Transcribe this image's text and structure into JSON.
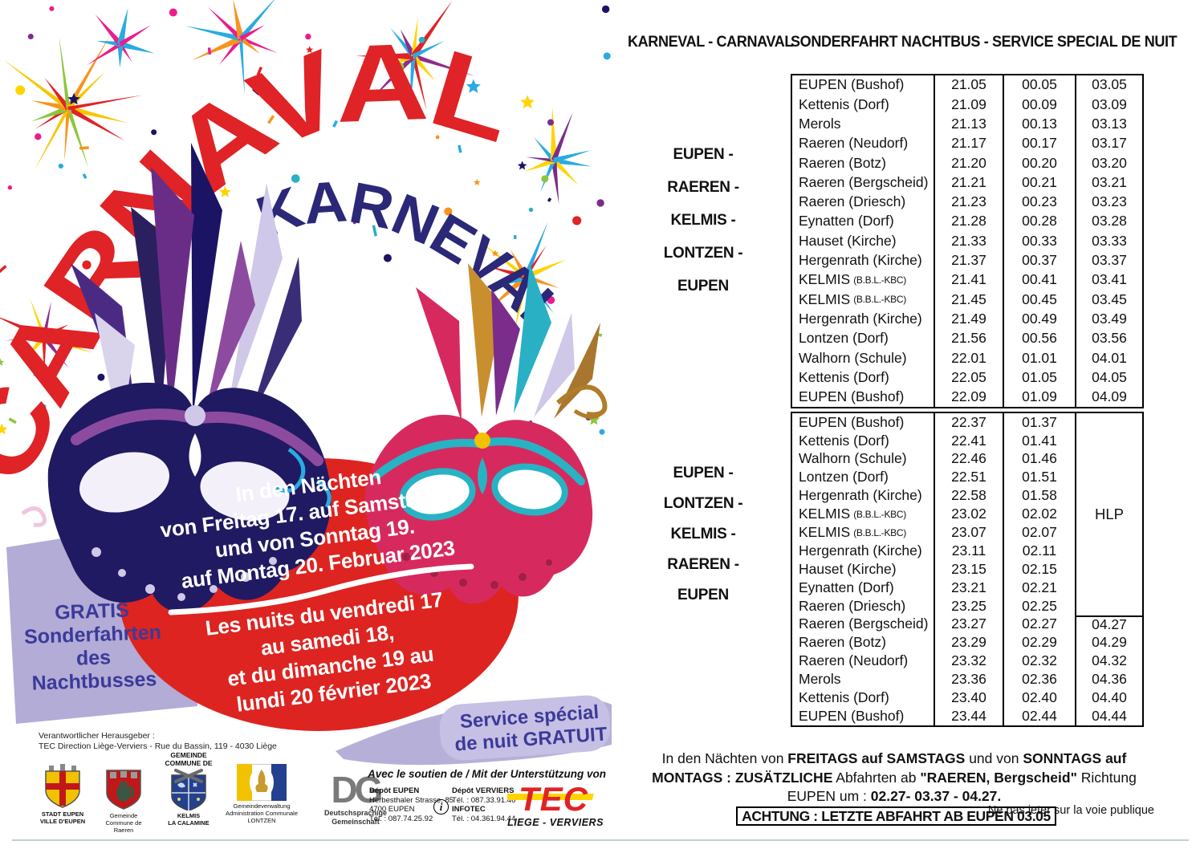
{
  "colors": {
    "title_red": "#df2326",
    "title_navy": "#2b2878",
    "circle_red": "#dd2421",
    "lavender_band": "#b2acd6",
    "label_blue": "#3c3a99",
    "tec_red": "#e02325",
    "tec_yellow": "#ffd400"
  },
  "poster": {
    "title_fr": "CARNAVAL",
    "title_de": "KARNEVAL",
    "circle": {
      "de_lines": [
        "In den Nächten",
        "von Freitag 17. auf Samstag 18,",
        "und von Sonntag 19.",
        "auf Montag 20. Februar 2023"
      ],
      "fr_lines": [
        "Les nuits du vendredi 17",
        "au samedi 18,",
        "et du dimanche 19 au",
        "lundi 20 février 2023"
      ]
    },
    "gratis_lines": [
      "GRATIS",
      "Sonderfahrten",
      "des",
      "Nachtbusses"
    ],
    "service_lines": [
      "Service spécial",
      "de nuit GRATUIT"
    ],
    "publisher_lines": [
      "Verantwortlicher Herausgeber :",
      "TEC Direction Liège-Verviers - Rue du Bassin, 119 - 4030 Liège"
    ],
    "support_title": "Avec le soutien de / Mit der Unterstützung von",
    "depot_eupen": [
      {
        "t": "Dépôt EUPEN",
        "b": true
      },
      {
        "t": "Herbesthaler Strasse, 85",
        "b": false
      },
      {
        "t": "4700 EUPEN",
        "b": false
      },
      {
        "t": "Tél. : 087.74.25.92",
        "b": false
      }
    ],
    "depot_verviers": [
      {
        "t": "Dépôt VERVIERS",
        "b": true
      },
      {
        "t": "Tél. : 087.33.91.46",
        "b": false
      },
      {
        "t": "INFOTEC",
        "b": true
      },
      {
        "t": "Tél. : 04.361.94.44",
        "b": false
      }
    ],
    "tec_logo": {
      "text": "TEC",
      "sub": "LIEGE - VERVIERS"
    },
    "logos": [
      {
        "caption": [
          "STADT EUPEN",
          "VILLE D'EUPEN"
        ]
      },
      {
        "caption": [
          "Gemeinde",
          "Commune de",
          "Raeren"
        ]
      },
      {
        "top": [
          "GEMEINDE",
          "COMMUNE DE"
        ],
        "caption": [
          "KELMIS",
          "LA CALAMINE"
        ]
      },
      {
        "caption": [
          "Gemeindeverwaltung",
          "Administration Communale",
          "LONTZEN"
        ]
      },
      {
        "text": "DG",
        "caption": [
          "Deutschsprachige",
          "Gemeinschaft"
        ]
      }
    ]
  },
  "right": {
    "header_left": "KARNEVAL - CARNAVAL",
    "header_right": "SONDERFAHRT NACHTBUS - SERVICE SPECIAL DE NUIT",
    "tables": [
      {
        "route": [
          "EUPEN -",
          "RAEREN -",
          "KELMIS -",
          "LONTZEN -",
          "EUPEN"
        ],
        "rows": [
          {
            "stop": "EUPEN (Bushof)",
            "times": [
              "21.05",
              "00.05",
              "03.05"
            ]
          },
          {
            "stop": "Kettenis (Dorf)",
            "times": [
              "21.09",
              "00.09",
              "03.09"
            ]
          },
          {
            "stop": "Merols",
            "times": [
              "21.13",
              "00.13",
              "03.13"
            ]
          },
          {
            "stop": "Raeren (Neudorf)",
            "times": [
              "21.17",
              "00.17",
              "03.17"
            ]
          },
          {
            "stop": "Raeren (Botz)",
            "times": [
              "21.20",
              "00.20",
              "03.20"
            ]
          },
          {
            "stop": "Raeren (Bergscheid)",
            "times": [
              "21.21",
              "00.21",
              "03.21"
            ]
          },
          {
            "stop": "Raeren (Driesch)",
            "times": [
              "21.23",
              "00.23",
              "03.23"
            ]
          },
          {
            "stop": "Eynatten (Dorf)",
            "times": [
              "21.28",
              "00.28",
              "03.28"
            ]
          },
          {
            "stop": "Hauset (Kirche)",
            "times": [
              "21.33",
              "00.33",
              "03.33"
            ]
          },
          {
            "stop": "Hergenrath (Kirche)",
            "times": [
              "21.37",
              "00.37",
              "03.37"
            ]
          },
          {
            "stop": "KELMIS",
            "sub": "(B.B.L.-KBC)",
            "times": [
              "21.41",
              "00.41",
              "03.41"
            ]
          },
          {
            "stop": "KELMIS",
            "sub": "(B.B.L.-KBC)",
            "times": [
              "21.45",
              "00.45",
              "03.45"
            ]
          },
          {
            "stop": "Hergenrath (Kirche)",
            "times": [
              "21.49",
              "00.49",
              "03.49"
            ]
          },
          {
            "stop": "Lontzen (Dorf)",
            "times": [
              "21.56",
              "00.56",
              "03.56"
            ]
          },
          {
            "stop": "Walhorn (Schule)",
            "times": [
              "22.01",
              "01.01",
              "04.01"
            ]
          },
          {
            "stop": "Kettenis (Dorf)",
            "times": [
              "22.05",
              "01.05",
              "04.05"
            ]
          },
          {
            "stop": "EUPEN (Bushof)",
            "times": [
              "22.09",
              "01.09",
              "04.09"
            ]
          }
        ]
      },
      {
        "route": [
          "EUPEN -",
          "LONTZEN -",
          "KELMIS -",
          "RAEREN -",
          "EUPEN"
        ],
        "hlp": "HLP",
        "hlp_span_rows": 11,
        "rows": [
          {
            "stop": "EUPEN (Bushof)",
            "times": [
              "22.37",
              "01.37",
              ""
            ]
          },
          {
            "stop": "Kettenis (Dorf)",
            "times": [
              "22.41",
              "01.41",
              ""
            ]
          },
          {
            "stop": "Walhorn (Schule)",
            "times": [
              "22.46",
              "01.46",
              ""
            ]
          },
          {
            "stop": "Lontzen (Dorf)",
            "times": [
              "22.51",
              "01.51",
              ""
            ]
          },
          {
            "stop": "Hergenrath (Kirche)",
            "times": [
              "22.58",
              "01.58",
              ""
            ]
          },
          {
            "stop": "KELMIS",
            "sub": "(B.B.L.-KBC)",
            "times": [
              "23.02",
              "02.02",
              ""
            ]
          },
          {
            "stop": "KELMIS",
            "sub": "(B.B.L.-KBC)",
            "times": [
              "23.07",
              "02.07",
              ""
            ]
          },
          {
            "stop": "Hergenrath (Kirche)",
            "times": [
              "23.11",
              "02.11",
              ""
            ]
          },
          {
            "stop": "Hauset (Kirche)",
            "times": [
              "23.15",
              "02.15",
              ""
            ]
          },
          {
            "stop": "Eynatten (Dorf)",
            "times": [
              "23.21",
              "02.21",
              ""
            ]
          },
          {
            "stop": "Raeren (Driesch)",
            "times": [
              "23.25",
              "02.25",
              ""
            ]
          },
          {
            "stop": "Raeren (Bergscheid)",
            "times": [
              "23.27",
              "02.27",
              "04.27"
            ]
          },
          {
            "stop": "Raeren (Botz)",
            "times": [
              "23.29",
              "02.29",
              "04.29"
            ]
          },
          {
            "stop": "Raeren (Neudorf)",
            "times": [
              "23.32",
              "02.32",
              "04.32"
            ]
          },
          {
            "stop": "Merols",
            "times": [
              "23.36",
              "02.36",
              "04.36"
            ]
          },
          {
            "stop": "Kettenis (Dorf)",
            "times": [
              "23.40",
              "02.40",
              "04.40"
            ]
          },
          {
            "stop": "EUPEN (Bushof)",
            "times": [
              "23.44",
              "02.44",
              "04.44"
            ]
          }
        ]
      }
    ],
    "footer_lines": [
      [
        {
          "t": "In den Nächten von ",
          "b": false
        },
        {
          "t": "FREITAGS auf SAMSTAGS",
          "b": true
        },
        {
          "t": " und von ",
          "b": false
        },
        {
          "t": "SONNTAGS auf",
          "b": true
        }
      ],
      [
        {
          "t": "MONTAGS : ZUSÄTZLICHE",
          "b": true
        },
        {
          "t": " Abfahrten ab ",
          "b": false
        },
        {
          "t": "\"RAEREN, Bergscheid\"",
          "b": true
        },
        {
          "t": " Richtung",
          "b": false
        }
      ],
      [
        {
          "t": "EUPEN um : ",
          "b": false
        },
        {
          "t": "02.27- 03.37 - 04.27.",
          "b": true
        },
        {
          "t": "ACHTUNG : LETZTE ABFAHRT AB EUPEN 03.05",
          "b": true,
          "box": true
        }
      ]
    ],
    "note": "Ne pas jeter sur la voie publique"
  }
}
